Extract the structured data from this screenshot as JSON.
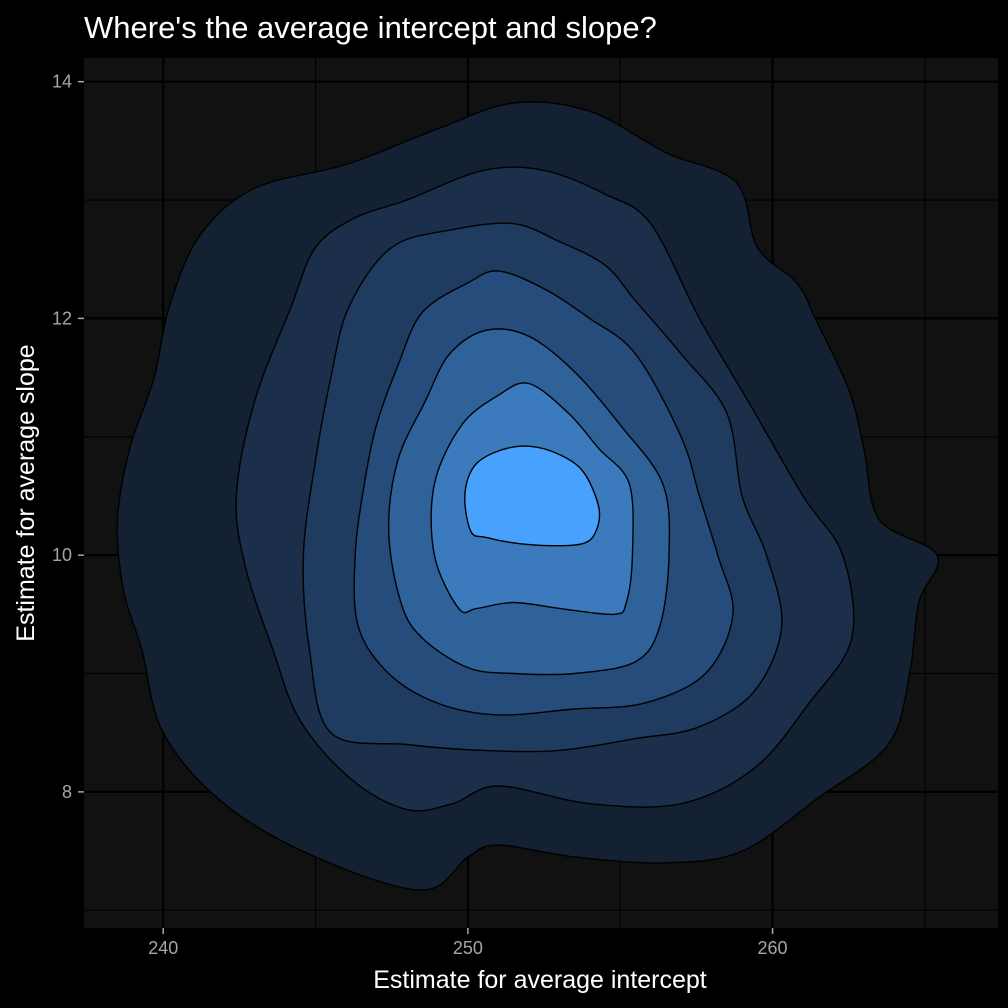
{
  "chart_data": {
    "type": "density_contour",
    "title": "Where's the average intercept and slope?",
    "xlabel": "Estimate for average intercept",
    "ylabel": "Estimate for average slope",
    "xlim": [
      237.4,
      267.4
    ],
    "ylim": [
      6.85,
      14.2
    ],
    "x_ticks": [
      240,
      250,
      260
    ],
    "y_ticks": [
      8,
      10,
      12,
      14
    ],
    "grid": true,
    "legend": "none",
    "center": {
      "x": 252.0,
      "y": 10.45
    },
    "levels": [
      {
        "level": 1,
        "fill": "#132132",
        "points": [
          [
            248.5,
            7.17
          ],
          [
            245,
            7.45
          ],
          [
            242,
            7.9
          ],
          [
            240,
            8.5
          ],
          [
            239.3,
            9.2
          ],
          [
            238.7,
            9.7
          ],
          [
            238.5,
            10.3
          ],
          [
            238.9,
            10.9
          ],
          [
            239.7,
            11.5
          ],
          [
            240.2,
            12.1
          ],
          [
            241.2,
            12.7
          ],
          [
            243,
            13.1
          ],
          [
            246,
            13.3
          ],
          [
            249,
            13.6
          ],
          [
            251.5,
            13.82
          ],
          [
            254,
            13.75
          ],
          [
            256.5,
            13.4
          ],
          [
            258.8,
            13.15
          ],
          [
            259.5,
            12.6
          ],
          [
            260.8,
            12.3
          ],
          [
            261.4,
            12.0
          ],
          [
            262.5,
            11.4
          ],
          [
            263,
            10.9
          ],
          [
            263.5,
            10.3
          ],
          [
            265.4,
            10.0
          ],
          [
            264.8,
            9.6
          ],
          [
            264.5,
            9.0
          ],
          [
            263.8,
            8.4
          ],
          [
            261.5,
            7.95
          ],
          [
            259,
            7.5
          ],
          [
            256.5,
            7.4
          ],
          [
            253.5,
            7.45
          ],
          [
            251,
            7.55
          ],
          [
            250,
            7.45
          ]
        ]
      },
      {
        "level": 2,
        "fill": "#1b2e4a",
        "points": [
          [
            248,
            7.85
          ],
          [
            246.2,
            8.1
          ],
          [
            244.5,
            8.6
          ],
          [
            243.6,
            9.2
          ],
          [
            242.7,
            9.9
          ],
          [
            242.4,
            10.5
          ],
          [
            243,
            11.3
          ],
          [
            244.2,
            12.1
          ],
          [
            245,
            12.6
          ],
          [
            246.3,
            12.85
          ],
          [
            248,
            13.0
          ],
          [
            250.5,
            13.25
          ],
          [
            252.5,
            13.25
          ],
          [
            254.5,
            13.05
          ],
          [
            256,
            12.8
          ],
          [
            257.6,
            12.0
          ],
          [
            259.2,
            11.3
          ],
          [
            261,
            10.5
          ],
          [
            262.3,
            10.0
          ],
          [
            262.6,
            9.3
          ],
          [
            261.2,
            8.75
          ],
          [
            259.4,
            8.2
          ],
          [
            257,
            7.9
          ],
          [
            254,
            7.9
          ],
          [
            251,
            8.05
          ],
          [
            249.5,
            7.9
          ]
        ]
      },
      {
        "level": 3,
        "fill": "#1f3b60",
        "points": [
          [
            245.5,
            8.5
          ],
          [
            244.8,
            9.2
          ],
          [
            244.6,
            10.0
          ],
          [
            245,
            10.8
          ],
          [
            245.5,
            11.5
          ],
          [
            246.1,
            12.1
          ],
          [
            247.5,
            12.6
          ],
          [
            249.5,
            12.75
          ],
          [
            251.5,
            12.8
          ],
          [
            253,
            12.65
          ],
          [
            254.5,
            12.45
          ],
          [
            255.5,
            12.15
          ],
          [
            257,
            11.7
          ],
          [
            258.5,
            11.2
          ],
          [
            259,
            10.5
          ],
          [
            259.8,
            10.0
          ],
          [
            260.3,
            9.4
          ],
          [
            259.4,
            8.85
          ],
          [
            257.6,
            8.55
          ],
          [
            255.5,
            8.45
          ],
          [
            253,
            8.35
          ],
          [
            250.5,
            8.35
          ],
          [
            248,
            8.4
          ]
        ]
      },
      {
        "level": 4,
        "fill": "#254c7b",
        "points": [
          [
            246.4,
            9.4
          ],
          [
            246.3,
            10.0
          ],
          [
            246.6,
            10.6
          ],
          [
            247,
            11.1
          ],
          [
            247.7,
            11.6
          ],
          [
            248.5,
            12.05
          ],
          [
            250,
            12.3
          ],
          [
            251,
            12.4
          ],
          [
            252.5,
            12.25
          ],
          [
            254,
            12.0
          ],
          [
            255.5,
            11.7
          ],
          [
            257,
            11.0
          ],
          [
            257.6,
            10.5
          ],
          [
            258.2,
            10.0
          ],
          [
            258.7,
            9.5
          ],
          [
            257.8,
            9.0
          ],
          [
            255.8,
            8.75
          ],
          [
            253.5,
            8.7
          ],
          [
            251,
            8.65
          ],
          [
            249,
            8.75
          ],
          [
            247.4,
            9.0
          ]
        ]
      },
      {
        "level": 5,
        "fill": "#2f6299",
        "points": [
          [
            247.8,
            9.6
          ],
          [
            247.4,
            10.2
          ],
          [
            247.7,
            10.8
          ],
          [
            248.6,
            11.3
          ],
          [
            249.4,
            11.7
          ],
          [
            250.6,
            11.9
          ],
          [
            252,
            11.85
          ],
          [
            253.5,
            11.55
          ],
          [
            255,
            11.1
          ],
          [
            256.4,
            10.6
          ],
          [
            256.6,
            10.0
          ],
          [
            256.3,
            9.4
          ],
          [
            255.5,
            9.1
          ],
          [
            253.5,
            9.0
          ],
          [
            251.5,
            9.0
          ],
          [
            250,
            9.05
          ],
          [
            248.5,
            9.3
          ]
        ]
      },
      {
        "level": 6,
        "fill": "#3b7bbd",
        "points": [
          [
            249.7,
            9.55
          ],
          [
            248.9,
            10.0
          ],
          [
            248.9,
            10.6
          ],
          [
            249.8,
            11.1
          ],
          [
            251,
            11.35
          ],
          [
            252,
            11.45
          ],
          [
            253.3,
            11.2
          ],
          [
            254.3,
            10.9
          ],
          [
            255.3,
            10.6
          ],
          [
            255.4,
            10.0
          ],
          [
            255.2,
            9.6
          ],
          [
            254.8,
            9.5
          ],
          [
            253,
            9.55
          ],
          [
            251.5,
            9.6
          ],
          [
            250.3,
            9.55
          ]
        ]
      },
      {
        "level": 7,
        "fill": "#48a1fc",
        "points": [
          [
            250.1,
            10.2
          ],
          [
            249.9,
            10.5
          ],
          [
            250.2,
            10.75
          ],
          [
            251,
            10.88
          ],
          [
            252,
            10.92
          ],
          [
            253,
            10.85
          ],
          [
            253.8,
            10.7
          ],
          [
            254.3,
            10.4
          ],
          [
            254.2,
            10.2
          ],
          [
            253.8,
            10.1
          ],
          [
            252.8,
            10.08
          ],
          [
            251.6,
            10.1
          ],
          [
            250.6,
            10.15
          ]
        ]
      }
    ]
  }
}
